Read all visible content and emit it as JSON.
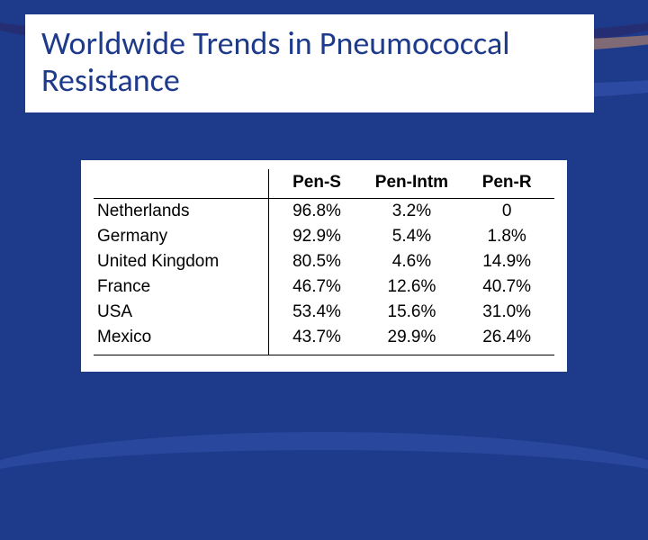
{
  "title": "Worldwide Trends in Pneumococcal Resistance",
  "table": {
    "type": "table",
    "background_color": "#ffffff",
    "text_color": "#000000",
    "border_color": "#000000",
    "font_family": "Arial",
    "header_fontsize": 19,
    "cell_fontsize": 19,
    "columns": [
      "",
      "Pen-S",
      "Pen-Intm",
      "Pen-R"
    ],
    "rows": [
      [
        "Netherlands",
        "96.8%",
        "3.2%",
        "0"
      ],
      [
        "Germany",
        "92.9%",
        "5.4%",
        "1.8%"
      ],
      [
        "United Kingdom",
        "80.5%",
        "4.6%",
        "14.9%"
      ],
      [
        "France",
        "46.7%",
        "12.6%",
        "40.7%"
      ],
      [
        "USA",
        "53.4%",
        "15.6%",
        "31.0%"
      ],
      [
        "Mexico",
        "43.7%",
        "29.9%",
        "26.4%"
      ]
    ]
  },
  "slide": {
    "background_color": "#1e3a8a",
    "title_box_bg": "#ffffff",
    "title_color": "#1e3a8a",
    "title_fontsize": 36,
    "swoosh_colors": [
      "#2a2a6a",
      "#c08a6a",
      "#3a5bbb"
    ]
  }
}
